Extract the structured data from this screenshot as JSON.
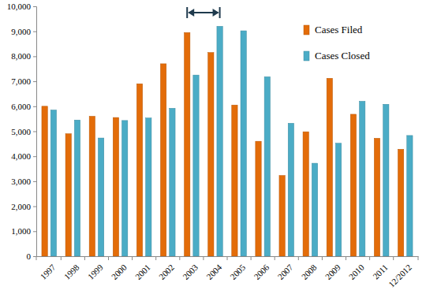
{
  "chart_data": {
    "type": "bar",
    "categories": [
      "1997",
      "1998",
      "1999",
      "2000",
      "2001",
      "2002",
      "2003",
      "2004",
      "2005",
      "2006",
      "2007",
      "2008",
      "2009",
      "2010",
      "2011",
      "12/2012"
    ],
    "series": [
      {
        "name": "Cases Filed",
        "color": "#e36c09",
        "values": [
          6000,
          4900,
          5600,
          5550,
          6900,
          7700,
          8950,
          8150,
          6050,
          4600,
          3230,
          4980,
          7120,
          5680,
          4720,
          4280
        ]
      },
      {
        "name": "Cases Closed",
        "color": "#4bacc6",
        "values": [
          5850,
          5450,
          4730,
          5430,
          5530,
          5920,
          7250,
          9200,
          9020,
          7180,
          5320,
          3720,
          4520,
          6200,
          6080,
          4830
        ]
      }
    ],
    "ylim": [
      0,
      10000
    ],
    "yticks": [
      0,
      {
        "value": 1000,
        "label": "1,000"
      },
      {
        "value": 2000,
        "label": "2,000"
      },
      {
        "value": 3000,
        "label": "3,000"
      },
      {
        "value": 4000,
        "label": "4,000"
      },
      {
        "value": 5000,
        "label": "5,000"
      },
      {
        "value": 6000,
        "label": "6,000"
      },
      {
        "value": 7000,
        "label": "7,000"
      },
      {
        "value": 8000,
        "label": "8,000"
      },
      {
        "value": 9000,
        "label": "9,000"
      },
      {
        "value": 10000,
        "label": "10,000"
      }
    ],
    "grid": false,
    "legend": "top-right"
  }
}
